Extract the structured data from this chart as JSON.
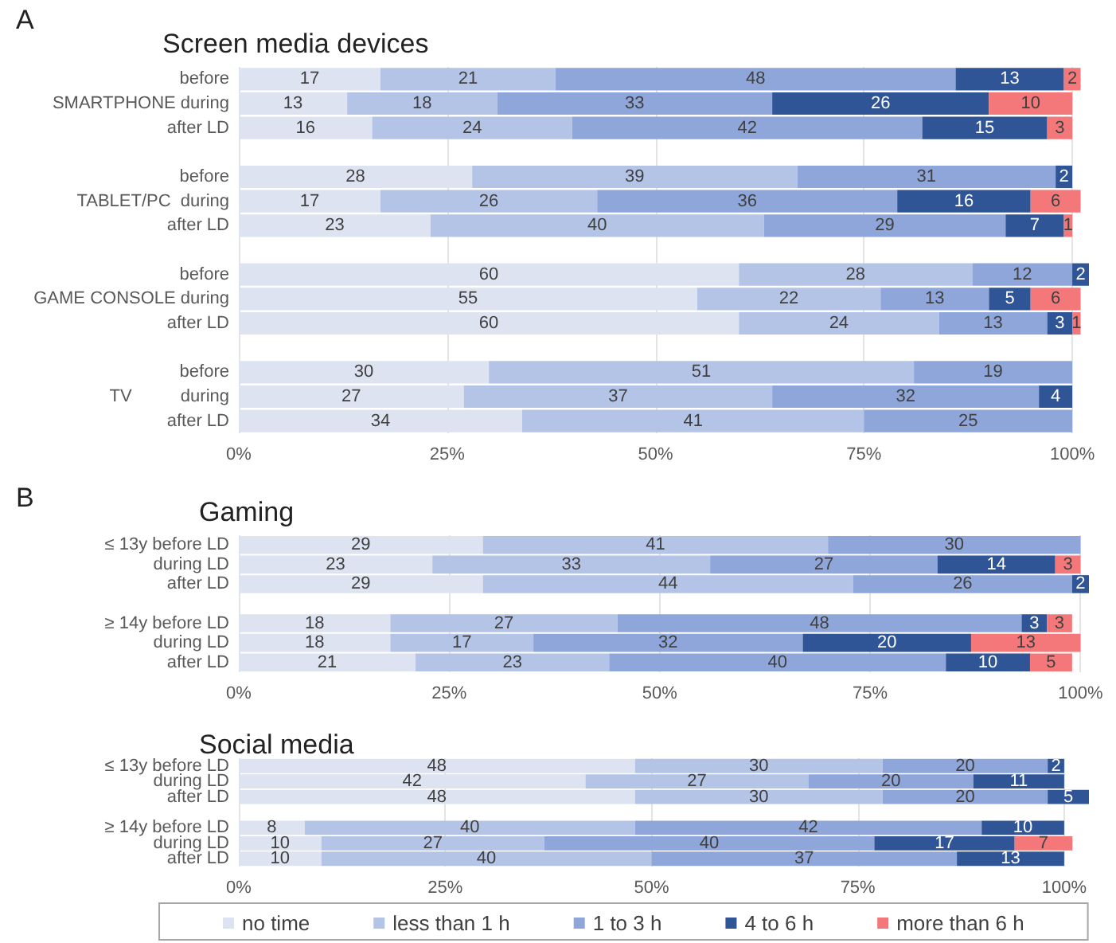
{
  "chart_data": [
    {
      "type": "bar",
      "orientation": "horizontal",
      "stacked": true,
      "title": "Screen media devices",
      "annotations": [
        "A"
      ],
      "categories": [
        "before",
        "SMARTPHONE during",
        "after LD",
        null,
        "before",
        "TABLET/PC  during",
        "after LD",
        null,
        "before",
        "GAME CONSOLE during",
        "after LD",
        null,
        "before",
        "TV          during",
        "after LD"
      ],
      "series": [
        {
          "color": "#dde3f1",
          "values": [
            17,
            13,
            16,
            null,
            28,
            17,
            23,
            null,
            60,
            55,
            60,
            null,
            30,
            27,
            34
          ]
        },
        {
          "color": "#b4c4e6",
          "values": [
            21,
            18,
            24,
            null,
            39,
            26,
            40,
            null,
            28,
            22,
            24,
            null,
            51,
            37,
            41
          ]
        },
        {
          "color": "#8ea6da",
          "values": [
            48,
            33,
            42,
            null,
            31,
            36,
            29,
            null,
            12,
            13,
            13,
            null,
            19,
            32,
            25
          ]
        },
        {
          "color": "#2f5597",
          "values": [
            13,
            26,
            15,
            null,
            2,
            16,
            7,
            null,
            2,
            5,
            3,
            null,
            null,
            4,
            null
          ]
        },
        {
          "color": "#f4777a",
          "values": [
            2,
            10,
            3,
            null,
            null,
            6,
            1,
            null,
            null,
            6,
            1,
            null,
            null,
            null,
            null
          ]
        }
      ],
      "xlim": [
        0,
        102
      ],
      "xticks": [
        {
          "value": 0,
          "label": "0%"
        },
        {
          "value": 25,
          "label": "25%"
        },
        {
          "value": 50,
          "label": "50%"
        },
        {
          "value": 75,
          "label": "75%"
        },
        {
          "value": 100,
          "label": "100%"
        }
      ],
      "grid": "x",
      "data_labels": true,
      "legend": false
    },
    {
      "type": "bar",
      "orientation": "horizontal",
      "stacked": true,
      "title": "Gaming",
      "annotations": [
        "B"
      ],
      "categories": [
        "≤ 13y before LD",
        "during LD",
        "after LD",
        null,
        "≥ 14y before LD",
        "during LD",
        "after LD"
      ],
      "series": [
        {
          "color": "#dde3f1",
          "values": [
            29,
            23,
            29,
            null,
            18,
            18,
            21
          ]
        },
        {
          "color": "#b4c4e6",
          "values": [
            41,
            33,
            44,
            null,
            27,
            17,
            23
          ]
        },
        {
          "color": "#8ea6da",
          "values": [
            30,
            27,
            26,
            null,
            48,
            32,
            40
          ]
        },
        {
          "color": "#2f5597",
          "values": [
            null,
            14,
            2,
            null,
            3,
            20,
            10
          ]
        },
        {
          "color": "#f4777a",
          "values": [
            null,
            3,
            null,
            null,
            3,
            13,
            5
          ]
        }
      ],
      "xlim": [
        0,
        101
      ],
      "xticks": [
        {
          "value": 0,
          "label": "0%"
        },
        {
          "value": 25,
          "label": "25%"
        },
        {
          "value": 50,
          "label": "50%"
        },
        {
          "value": 75,
          "label": "75%"
        },
        {
          "value": 100,
          "label": "100%"
        }
      ],
      "grid": "x",
      "data_labels": true,
      "legend": false
    },
    {
      "type": "bar",
      "orientation": "horizontal",
      "stacked": true,
      "title": "Social media",
      "categories": [
        "≤ 13y before LD",
        "during LD",
        "after LD",
        null,
        "≥ 14y before LD",
        "during LD",
        "after LD"
      ],
      "series": [
        {
          "name": "no time",
          "color": "#dde3f1",
          "values": [
            48,
            42,
            48,
            null,
            8,
            10,
            10
          ]
        },
        {
          "name": "less than 1 h",
          "color": "#b4c4e6",
          "values": [
            30,
            27,
            30,
            null,
            40,
            27,
            40
          ]
        },
        {
          "name": "1 to 3 h",
          "color": "#8ea6da",
          "values": [
            20,
            20,
            20,
            null,
            42,
            40,
            37
          ]
        },
        {
          "name": "4 to 6 h",
          "color": "#2f5597",
          "values": [
            2,
            11,
            5,
            null,
            10,
            17,
            13
          ]
        },
        {
          "name": "more than 6 h",
          "color": "#f4777a",
          "values": [
            null,
            null,
            null,
            null,
            null,
            7,
            null
          ]
        }
      ],
      "xlim": [
        0,
        103
      ],
      "xticks": [
        {
          "value": 0,
          "label": "0%"
        },
        {
          "value": 25,
          "label": "25%"
        },
        {
          "value": 50,
          "label": "50%"
        },
        {
          "value": 75,
          "label": "75%"
        },
        {
          "value": 100,
          "label": "100%"
        }
      ],
      "grid": "x",
      "data_labels": true,
      "legend": "bottom"
    }
  ]
}
